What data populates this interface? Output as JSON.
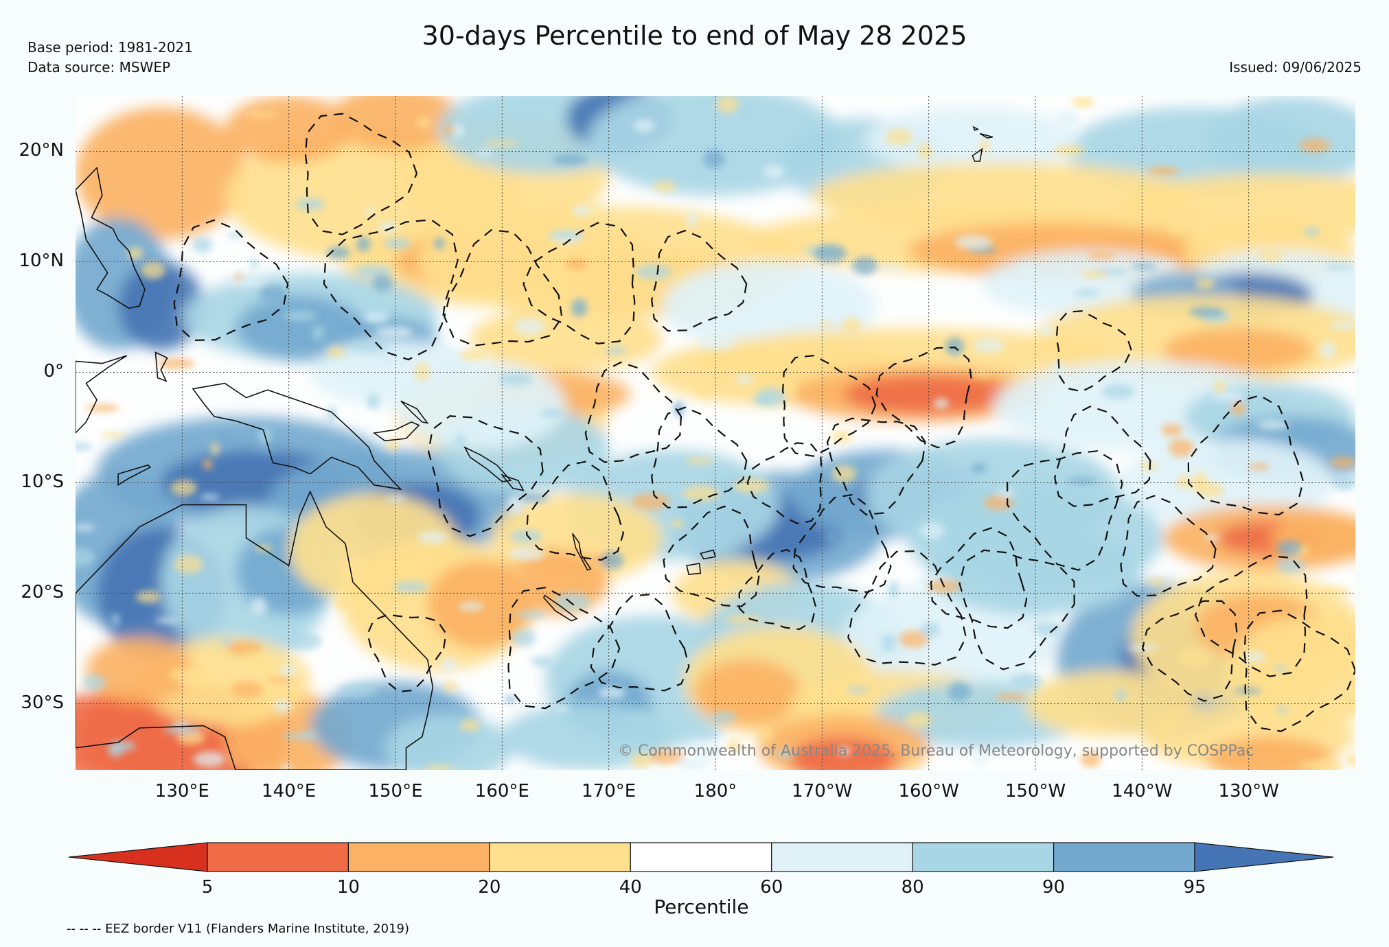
{
  "header": {
    "title": "30-days Percentile to end of May 28 2025",
    "base_period": "Base period: 1981-2021",
    "data_source": "Data source: MSWEP",
    "issued": "Issued: 09/06/2025"
  },
  "map": {
    "lat_labels": [
      "20°N",
      "10°N",
      "0°",
      "10°S",
      "20°S",
      "30°S"
    ],
    "lon_labels": [
      "130°E",
      "140°E",
      "150°E",
      "160°E",
      "170°E",
      "180°",
      "170°W",
      "160°W",
      "150°W",
      "140°W",
      "130°W"
    ],
    "extent": {
      "lon_min": 120,
      "lon_max": 240,
      "lat_min": -36,
      "lat_max": 25
    },
    "copyright": "© Commonwealth of Australia 2025, Bureau of Meteorology, supported by COSPPac"
  },
  "colorbar": {
    "label": "Percentile",
    "ticks": [
      "5",
      "10",
      "20",
      "40",
      "60",
      "80",
      "90",
      "95"
    ],
    "colors": [
      "#d7301f",
      "#ef6c46",
      "#fbb264",
      "#fee08e",
      "#ffffff",
      "#e0f2f8",
      "#a9d6e5",
      "#74a9cf",
      "#4575b4"
    ]
  },
  "footer": {
    "eez_note": "-- -- -- EEZ border V11 (Flanders Marine Institute, 2019)"
  }
}
